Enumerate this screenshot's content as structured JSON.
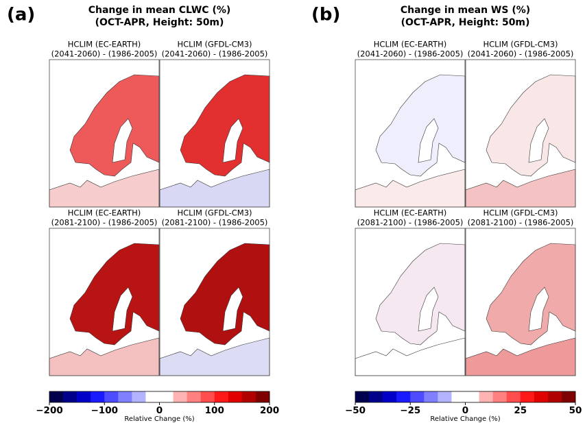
{
  "panels": [
    {
      "label": "(a)",
      "title": [
        "Change in mean CLWC (%)",
        "(OCT-APR, Height: 50m)"
      ],
      "maps": [
        {
          "title": [
            "HCLIM (EC-EARTH)",
            "(2041-2060) - (1986-2005)"
          ],
          "north_fill": "#ee5a5a",
          "south_fill": "#f7cccc"
        },
        {
          "title": [
            "HCLIM (GFDL-CM3)",
            "(2041-2060) - (1986-2005)"
          ],
          "north_fill": "#e23030",
          "south_fill": "#d8d8f4"
        },
        {
          "title": [
            "HCLIM (EC-EARTH)",
            "(2081-2100) - (1986-2005)"
          ],
          "north_fill": "#b81414",
          "south_fill": "#f5c0c0"
        },
        {
          "title": [
            "HCLIM (GFDL-CM3)",
            "(2081-2100) - (1986-2005)"
          ],
          "north_fill": "#b01010",
          "south_fill": "#dcdcf5"
        }
      ],
      "colorbar": {
        "label": "Relative Change (%)",
        "lim": [
          -200,
          200
        ],
        "ticks": [
          {
            "value": -200,
            "label": "−200"
          },
          {
            "value": -100,
            "label": "−100"
          },
          0,
          100,
          200
        ],
        "colors": [
          "#00004c",
          "#00008b",
          "#0000c8",
          "#1a1aff",
          "#4d4dff",
          "#8080ff",
          "#b3b3ff",
          "#ffffff",
          "#ffffff",
          "#ffb3b3",
          "#ff8080",
          "#ff4d4d",
          "#ff1a1a",
          "#e00000",
          "#b00000",
          "#7f0000"
        ]
      }
    },
    {
      "label": "(b)",
      "title": [
        "Change in mean WS (%)",
        "(OCT-APR, Height: 50m)"
      ],
      "maps": [
        {
          "title": [
            "HCLIM (EC-EARTH)",
            "(2041-2060) - (1986-2005)"
          ],
          "north_fill": "#eeeefc",
          "south_fill": "#fbeaea"
        },
        {
          "title": [
            "HCLIM (GFDL-CM3)",
            "(2041-2060) - (1986-2005)"
          ],
          "north_fill": "#f9e6e6",
          "south_fill": "#f4c2c2"
        },
        {
          "title": [
            "HCLIM (EC-EARTH)",
            "(2081-2100) - (1986-2005)"
          ],
          "north_fill": "#f5e8f0",
          "south_fill": "#ffffff"
        },
        {
          "title": [
            "HCLIM (GFDL-CM3)",
            "(2081-2100) - (1986-2005)"
          ],
          "north_fill": "#f1aaaa",
          "south_fill": "#ee9a9a"
        }
      ],
      "colorbar": {
        "label": "Relative Change (%)",
        "lim": [
          -50,
          50
        ],
        "ticks": [
          {
            "value": -50,
            "label": "−50"
          },
          {
            "value": -25,
            "label": "−25"
          },
          0,
          25,
          50
        ],
        "colors": [
          "#00004c",
          "#00008b",
          "#0000c8",
          "#1a1aff",
          "#4d4dff",
          "#8080ff",
          "#b3b3ff",
          "#ffffff",
          "#ffffff",
          "#ffb3b3",
          "#ff8080",
          "#ff4d4d",
          "#ff1a1a",
          "#e00000",
          "#b00000",
          "#7f0000"
        ]
      }
    }
  ]
}
